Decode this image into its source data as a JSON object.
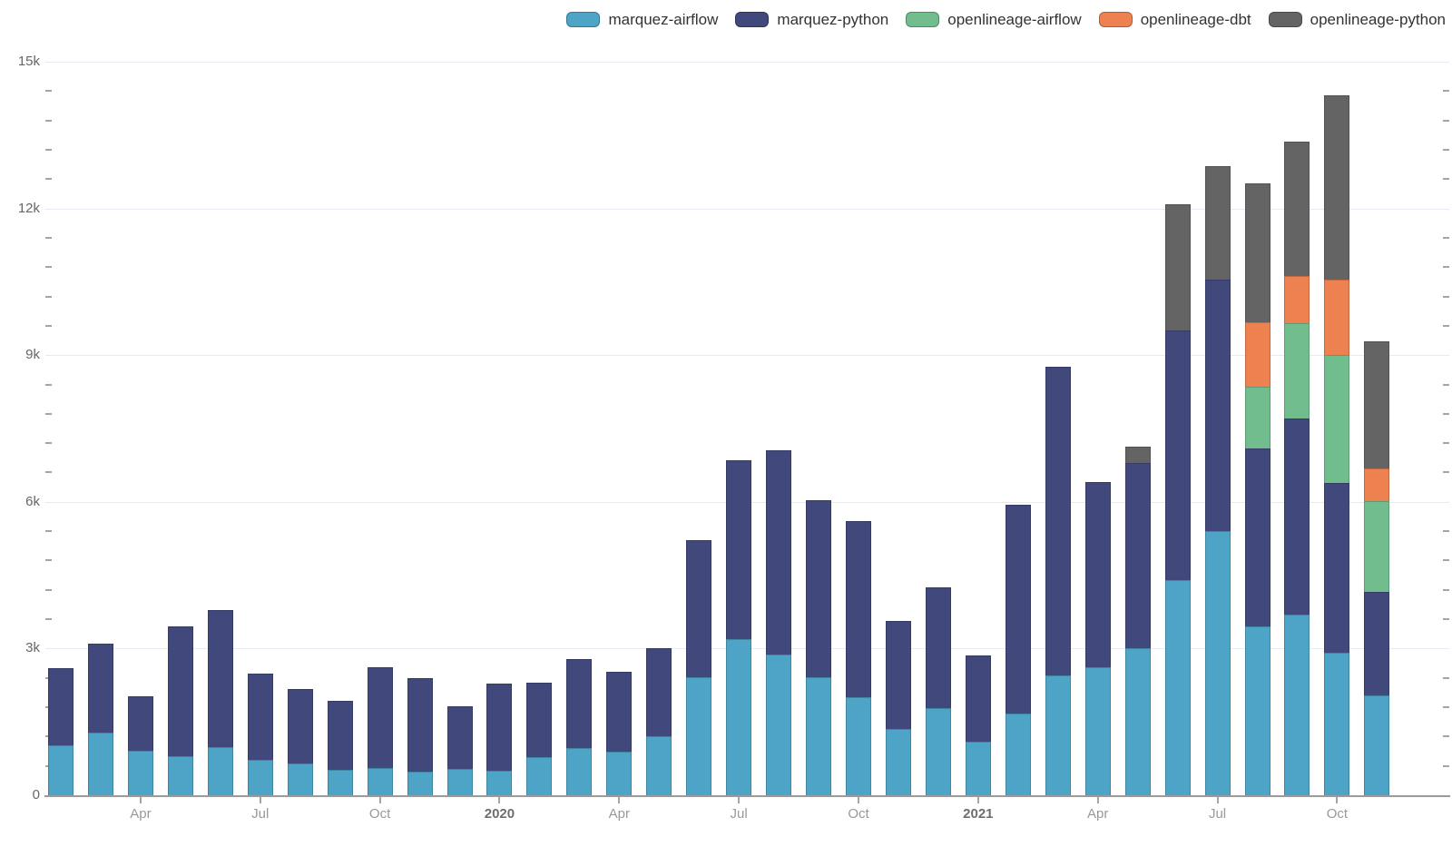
{
  "colors": {
    "background": "#FFFFFF",
    "gridline": "#E7EAF4",
    "axis_line": "#9A9A9A",
    "tick": "#A5A5A5",
    "y_label": "#666666",
    "x_label": "#999999",
    "x_label_year": "#6E6E6E",
    "legend_label": "#333333"
  },
  "chart_data": {
    "type": "bar",
    "stacked": true,
    "title": "",
    "xlabel": "",
    "ylabel": "",
    "ylim": [
      0,
      15000
    ],
    "grid": "horizontal-major",
    "legend_position": "top-right",
    "categories": [
      "2019-02",
      "2019-03",
      "2019-04",
      "2019-05",
      "2019-06",
      "2019-07",
      "2019-08",
      "2019-09",
      "2019-10",
      "2019-11",
      "2019-12",
      "2020-01",
      "2020-02",
      "2020-03",
      "2020-04",
      "2020-05",
      "2020-06",
      "2020-07",
      "2020-08",
      "2020-09",
      "2020-10",
      "2020-11",
      "2020-12",
      "2021-01",
      "2021-02",
      "2021-03",
      "2021-04",
      "2021-05",
      "2021-06",
      "2021-07",
      "2021-08",
      "2021-09",
      "2021-10",
      "2021-11"
    ],
    "series": [
      {
        "name": "marquez-airflow",
        "color": "#4DA4C6",
        "values": [
          1030,
          1280,
          910,
          805,
          975,
          730,
          655,
          525,
          555,
          490,
          530,
          510,
          785,
          970,
          895,
          1215,
          2420,
          3200,
          2885,
          2410,
          2010,
          1360,
          1775,
          1090,
          1665,
          2455,
          2625,
          3010,
          4400,
          5410,
          3460,
          3695,
          2920,
          2050
        ]
      },
      {
        "name": "marquez-python",
        "color": "#41487B",
        "values": [
          1565,
          1820,
          1110,
          2655,
          2815,
          1755,
          1525,
          1400,
          2060,
          1900,
          1295,
          1770,
          1510,
          1810,
          1635,
          1800,
          2805,
          3655,
          4165,
          3630,
          3600,
          2210,
          2475,
          1765,
          4285,
          6310,
          3785,
          3780,
          5110,
          5135,
          3640,
          4005,
          3460,
          2105
        ]
      },
      {
        "name": "openlineage-airflow",
        "color": "#71BD8D",
        "values": [
          0,
          0,
          0,
          0,
          0,
          0,
          0,
          0,
          0,
          0,
          0,
          0,
          0,
          0,
          0,
          0,
          0,
          0,
          0,
          0,
          0,
          0,
          0,
          0,
          0,
          0,
          0,
          0,
          0,
          0,
          1260,
          1960,
          2620,
          1855
        ]
      },
      {
        "name": "openlineage-dbt",
        "color": "#EE8150",
        "values": [
          0,
          0,
          0,
          0,
          0,
          0,
          0,
          0,
          0,
          0,
          0,
          0,
          0,
          0,
          0,
          0,
          0,
          0,
          0,
          0,
          0,
          0,
          0,
          0,
          0,
          0,
          0,
          0,
          0,
          0,
          1320,
          960,
          1550,
          680
        ]
      },
      {
        "name": "openlineage-python",
        "color": "#646464",
        "values": [
          0,
          0,
          0,
          0,
          0,
          0,
          0,
          0,
          0,
          0,
          0,
          0,
          0,
          0,
          0,
          0,
          0,
          0,
          0,
          0,
          0,
          0,
          0,
          0,
          0,
          0,
          0,
          340,
          2580,
          2320,
          2830,
          2740,
          3770,
          2600
        ]
      }
    ],
    "yticks": {
      "interval": 3000,
      "minor_interval": 600,
      "labels": [
        "0",
        "3k",
        "6k",
        "9k",
        "12k",
        "15k"
      ]
    },
    "xticks": [
      {
        "index": 2,
        "label": "Apr",
        "bold": false
      },
      {
        "index": 5,
        "label": "Jul",
        "bold": false
      },
      {
        "index": 8,
        "label": "Oct",
        "bold": false
      },
      {
        "index": 11,
        "label": "2020",
        "bold": true
      },
      {
        "index": 14,
        "label": "Apr",
        "bold": false
      },
      {
        "index": 17,
        "label": "Jul",
        "bold": false
      },
      {
        "index": 20,
        "label": "Oct",
        "bold": false
      },
      {
        "index": 23,
        "label": "2021",
        "bold": true
      },
      {
        "index": 26,
        "label": "Apr",
        "bold": false
      },
      {
        "index": 29,
        "label": "Jul",
        "bold": false
      },
      {
        "index": 32,
        "label": "Oct",
        "bold": false
      }
    ]
  }
}
